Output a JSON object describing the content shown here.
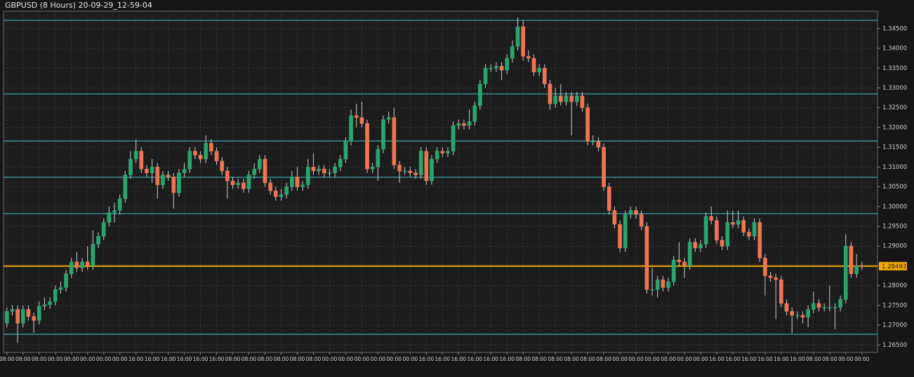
{
  "chart_data": {
    "type": "candlestick",
    "title": "GBPUSD (8 Hours) 20-09-29_12-59-04",
    "up_color": "#2aa56e",
    "down_color": "#ee7551",
    "level_color": "#3cc6cf",
    "price_color": "#f2a900",
    "grid": true,
    "ylim": [
      1.2631,
      1.3494
    ],
    "yticks": [
      {
        "value": 1.265,
        "label": "1.26500"
      },
      {
        "value": 1.27,
        "label": "1.27000"
      },
      {
        "value": 1.275,
        "label": "1.27500"
      },
      {
        "value": 1.28,
        "label": "1.28000"
      },
      {
        "value": 1.285,
        "label": "1.28500"
      },
      {
        "value": 1.29,
        "label": "1.29000"
      },
      {
        "value": 1.295,
        "label": "1.29500"
      },
      {
        "value": 1.3,
        "label": "1.30000"
      },
      {
        "value": 1.305,
        "label": "1.30500"
      },
      {
        "value": 1.31,
        "label": "1.31000"
      },
      {
        "value": 1.315,
        "label": "1.31500"
      },
      {
        "value": 1.32,
        "label": "1.32000"
      },
      {
        "value": 1.325,
        "label": "1.32500"
      },
      {
        "value": 1.33,
        "label": "1.33000"
      },
      {
        "value": 1.335,
        "label": "1.33500"
      },
      {
        "value": 1.34,
        "label": "1.34000"
      },
      {
        "value": 1.345,
        "label": "1.34500"
      }
    ],
    "levels": [
      1.3471,
      1.3285,
      1.3166,
      1.3074,
      1.2982,
      1.2677
    ],
    "current_price": 1.28493,
    "categories": [
      "08:00",
      null,
      null,
      "08:00",
      null,
      null,
      "08:00",
      null,
      null,
      "00:00",
      null,
      null,
      "00:00",
      null,
      null,
      "00:00",
      null,
      null,
      "00:00",
      null,
      null,
      "00:00",
      null,
      null,
      "16:00",
      null,
      null,
      "16:00",
      null,
      null,
      "16:00",
      null,
      null,
      "16:00",
      null,
      null,
      "16:00",
      null,
      null,
      "16:00",
      null,
      null,
      "08:00",
      null,
      null,
      "08:00",
      null,
      null,
      "08:00",
      null,
      null,
      "08:00",
      null,
      null,
      "08:00",
      null,
      null,
      "08:00",
      null,
      null,
      "00:00",
      null,
      null,
      "00:00",
      null,
      null,
      "00:00",
      null,
      null,
      "00:00",
      null,
      null,
      "00:00",
      null,
      null,
      "00:00",
      null,
      null,
      "16:00",
      null,
      null,
      "16:00",
      null,
      null,
      "16:00",
      null,
      null,
      "16:00",
      null,
      null,
      "16:00",
      null,
      null,
      "16:00",
      null,
      null,
      "08:00",
      null,
      null,
      "08:00",
      null,
      null,
      "08:00",
      null,
      null,
      "08:00",
      null,
      null,
      "08:00",
      null,
      null,
      "08:00",
      null,
      null,
      "00:00",
      null,
      null,
      "00:00",
      null,
      null,
      "00:00",
      null,
      null,
      "00:00",
      null,
      null,
      "00:00",
      null,
      null,
      "00:00",
      null,
      null,
      "16:00",
      null,
      null,
      "16:00",
      null,
      null,
      "16:00",
      null,
      null,
      "16:00",
      null,
      null,
      "16:00",
      null,
      null,
      "16:00",
      null,
      null,
      "08:00",
      null,
      null,
      "08:00",
      null,
      null,
      "00:00",
      null,
      null,
      "00:00"
    ],
    "open": [
      1.2705,
      1.2735,
      1.274,
      1.2705,
      1.274,
      1.2722,
      1.2712,
      1.2748,
      1.2752,
      1.276,
      1.279,
      1.2795,
      1.283,
      1.286,
      1.2845,
      1.286,
      1.285,
      1.2905,
      1.2925,
      1.296,
      1.2985,
      1.299,
      1.302,
      1.308,
      1.312,
      1.314,
      1.3095,
      1.3085,
      1.31,
      1.3055,
      1.308,
      1.3075,
      1.3035,
      1.3085,
      1.3095,
      1.314,
      1.313,
      1.312,
      1.316,
      1.314,
      1.3115,
      1.309,
      1.3065,
      1.3055,
      1.306,
      1.3045,
      1.308,
      1.3095,
      1.312,
      1.306,
      1.304,
      1.3025,
      1.303,
      1.305,
      1.3075,
      1.305,
      1.3055,
      1.31,
      1.309,
      1.3095,
      1.3085,
      1.3085,
      1.31,
      1.312,
      1.3165,
      1.323,
      1.3225,
      1.321,
      1.3095,
      1.31,
      1.3145,
      1.322,
      1.3225,
      1.3105,
      1.309,
      1.309,
      1.3085,
      1.308,
      1.314,
      1.3065,
      1.312,
      1.314,
      1.3135,
      1.314,
      1.3205,
      1.321,
      1.3205,
      1.3215,
      1.3255,
      1.331,
      1.335,
      1.335,
      1.3355,
      1.3345,
      1.3375,
      1.3405,
      1.3455,
      1.338,
      1.3375,
      1.334,
      1.335,
      1.331,
      1.326,
      1.328,
      1.3265,
      1.328,
      1.3265,
      1.328,
      1.325,
      1.3165,
      1.3165,
      1.315,
      1.305,
      1.299,
      1.2955,
      1.2895,
      1.298,
      1.299,
      1.298,
      1.295,
      1.279,
      1.279,
      1.2815,
      1.2795,
      1.281,
      1.2865,
      1.286,
      1.285,
      1.291,
      1.2895,
      1.2905,
      1.2975,
      1.2965,
      1.2915,
      1.29,
      1.296,
      1.2955,
      1.2965,
      1.2935,
      1.2925,
      1.296,
      1.287,
      1.2825,
      1.282,
      1.2815,
      1.2755,
      1.2735,
      1.2725,
      1.2725,
      1.272,
      1.274,
      1.2755,
      1.2745,
      1.2745,
      1.2745,
      1.2745,
      1.2765,
      1.29,
      1.283,
      1.285
    ],
    "high": [
      1.2745,
      1.275,
      1.275,
      1.275,
      1.275,
      1.2732,
      1.276,
      1.277,
      1.277,
      1.28,
      1.281,
      1.284,
      1.287,
      1.2885,
      1.287,
      1.29,
      1.294,
      1.2935,
      1.297,
      1.3,
      1.301,
      1.303,
      1.309,
      1.314,
      1.317,
      1.315,
      1.3105,
      1.312,
      1.311,
      1.309,
      1.309,
      1.3085,
      1.3095,
      1.311,
      1.315,
      1.315,
      1.314,
      1.318,
      1.317,
      1.315,
      1.3125,
      1.31,
      1.3075,
      1.307,
      1.307,
      1.309,
      1.311,
      1.313,
      1.313,
      1.307,
      1.305,
      1.3045,
      1.306,
      1.309,
      1.31,
      1.3065,
      1.312,
      1.3135,
      1.3105,
      1.3105,
      1.3095,
      1.311,
      1.313,
      1.3175,
      1.3245,
      1.326,
      1.3265,
      1.322,
      1.311,
      1.3155,
      1.323,
      1.324,
      1.325,
      1.3115,
      1.31,
      1.31,
      1.3095,
      1.315,
      1.315,
      1.313,
      1.315,
      1.315,
      1.315,
      1.3215,
      1.322,
      1.322,
      1.3245,
      1.3265,
      1.332,
      1.336,
      1.336,
      1.3365,
      1.3365,
      1.3385,
      1.342,
      1.3478,
      1.347,
      1.3395,
      1.3385,
      1.336,
      1.336,
      1.332,
      1.33,
      1.331,
      1.329,
      1.329,
      1.329,
      1.329,
      1.326,
      1.318,
      1.3175,
      1.316,
      1.306,
      1.3,
      1.2965,
      1.299,
      1.3,
      1.3,
      1.299,
      1.296,
      1.2845,
      1.2825,
      1.2825,
      1.282,
      1.2875,
      1.291,
      1.287,
      1.292,
      1.292,
      1.2915,
      1.2985,
      1.3,
      1.2975,
      1.2925,
      1.299,
      1.299,
      1.299,
      1.2975,
      1.2945,
      1.297,
      1.297,
      1.288,
      1.2835,
      1.283,
      1.2825,
      1.2765,
      1.2745,
      1.2735,
      1.2735,
      1.275,
      1.2785,
      1.2765,
      1.2755,
      1.28,
      1.2755,
      1.2775,
      1.293,
      1.291,
      1.288,
      1.286
    ],
    "low": [
      1.2695,
      1.2725,
      1.2655,
      1.2695,
      1.2712,
      1.268,
      1.2702,
      1.2738,
      1.2742,
      1.275,
      1.278,
      1.2785,
      1.282,
      1.2835,
      1.2835,
      1.284,
      1.284,
      1.2895,
      1.2915,
      1.295,
      1.296,
      1.298,
      1.301,
      1.307,
      1.311,
      1.3085,
      1.3075,
      1.306,
      1.302,
      1.3045,
      1.3065,
      1.2995,
      1.3025,
      1.3075,
      1.3085,
      1.312,
      1.311,
      1.311,
      1.313,
      1.3105,
      1.308,
      1.302,
      1.3045,
      1.3045,
      1.3035,
      1.3035,
      1.307,
      1.3085,
      1.305,
      1.303,
      1.3015,
      1.3015,
      1.302,
      1.304,
      1.304,
      1.304,
      1.3045,
      1.308,
      1.308,
      1.3075,
      1.3075,
      1.3075,
      1.309,
      1.311,
      1.3155,
      1.32,
      1.32,
      1.3085,
      1.3085,
      1.3065,
      1.3135,
      1.321,
      1.3095,
      1.306,
      1.308,
      1.3075,
      1.307,
      1.307,
      1.3055,
      1.3055,
      1.311,
      1.3125,
      1.3125,
      1.313,
      1.3195,
      1.3195,
      1.3195,
      1.3205,
      1.3245,
      1.33,
      1.334,
      1.334,
      1.332,
      1.3335,
      1.3365,
      1.3395,
      1.337,
      1.3365,
      1.333,
      1.333,
      1.33,
      1.3245,
      1.325,
      1.3255,
      1.3255,
      1.318,
      1.3255,
      1.324,
      1.3155,
      1.3155,
      1.314,
      1.304,
      1.298,
      1.2945,
      1.2885,
      1.2885,
      1.297,
      1.297,
      1.294,
      1.278,
      1.2775,
      1.277,
      1.2785,
      1.2785,
      1.28,
      1.285,
      1.282,
      1.284,
      1.2885,
      1.2885,
      1.2895,
      1.2955,
      1.2905,
      1.289,
      1.289,
      1.2945,
      1.2945,
      1.2925,
      1.2915,
      1.2915,
      1.286,
      1.2775,
      1.281,
      1.2715,
      1.2745,
      1.2725,
      1.268,
      1.2715,
      1.2705,
      1.2695,
      1.273,
      1.2735,
      1.2735,
      1.2735,
      1.269,
      1.2735,
      1.2755,
      1.282,
      1.282,
      1.284
    ],
    "close": [
      1.2735,
      1.274,
      1.2705,
      1.274,
      1.2722,
      1.2712,
      1.2748,
      1.2752,
      1.276,
      1.279,
      1.2795,
      1.283,
      1.286,
      1.2845,
      1.286,
      1.285,
      1.2905,
      1.2925,
      1.296,
      1.2985,
      1.299,
      1.302,
      1.308,
      1.312,
      1.314,
      1.3095,
      1.3085,
      1.31,
      1.3055,
      1.308,
      1.3075,
      1.3035,
      1.3085,
      1.3095,
      1.314,
      1.313,
      1.312,
      1.316,
      1.314,
      1.3115,
      1.309,
      1.3065,
      1.3055,
      1.306,
      1.3045,
      1.308,
      1.3095,
      1.312,
      1.306,
      1.304,
      1.3025,
      1.303,
      1.305,
      1.3075,
      1.305,
      1.3055,
      1.31,
      1.309,
      1.3095,
      1.3085,
      1.3085,
      1.31,
      1.312,
      1.3165,
      1.323,
      1.3225,
      1.321,
      1.3095,
      1.31,
      1.3145,
      1.322,
      1.3225,
      1.3105,
      1.309,
      1.309,
      1.3085,
      1.308,
      1.314,
      1.3065,
      1.312,
      1.314,
      1.3135,
      1.314,
      1.3205,
      1.321,
      1.3205,
      1.3215,
      1.3255,
      1.331,
      1.335,
      1.335,
      1.3355,
      1.3345,
      1.3375,
      1.3405,
      1.3455,
      1.338,
      1.3375,
      1.334,
      1.335,
      1.331,
      1.326,
      1.328,
      1.3265,
      1.328,
      1.3265,
      1.328,
      1.325,
      1.3165,
      1.3165,
      1.315,
      1.305,
      1.299,
      1.2955,
      1.2895,
      1.298,
      1.299,
      1.298,
      1.295,
      1.279,
      1.279,
      1.2815,
      1.2795,
      1.281,
      1.2865,
      1.286,
      1.285,
      1.291,
      1.2895,
      1.2905,
      1.2975,
      1.2965,
      1.2915,
      1.29,
      1.296,
      1.2955,
      1.2965,
      1.2935,
      1.2925,
      1.296,
      1.287,
      1.2825,
      1.282,
      1.2815,
      1.2755,
      1.2735,
      1.2725,
      1.2725,
      1.272,
      1.274,
      1.2755,
      1.2745,
      1.2745,
      1.2745,
      1.2745,
      1.2765,
      1.29,
      1.283,
      1.285,
      1.2849
    ]
  }
}
